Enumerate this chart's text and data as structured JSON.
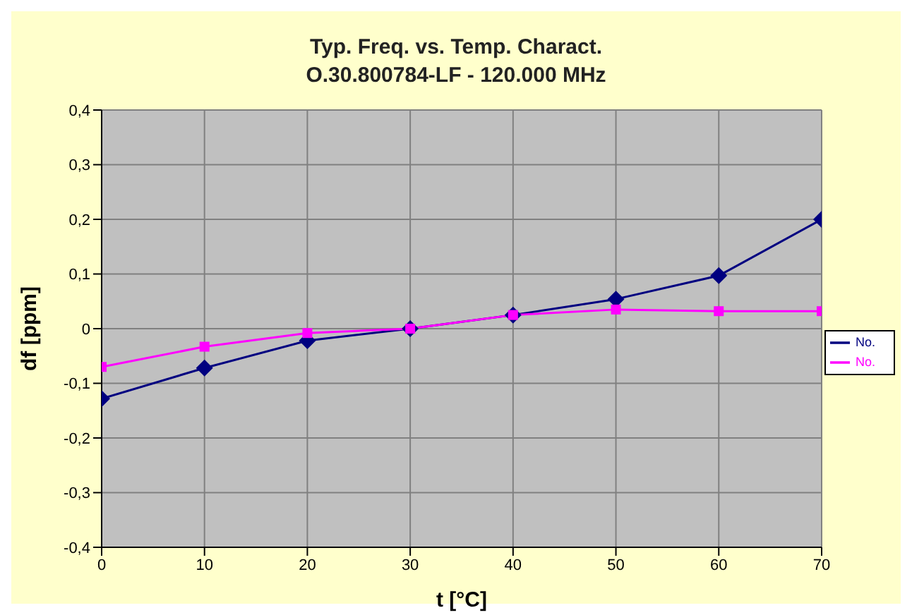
{
  "chart_data": {
    "type": "line",
    "title": "Typ. Freq. vs. Temp. Charact.",
    "subtitle": "O.30.800784-LF - 120.000 MHz",
    "xlabel": "t [°C]",
    "ylabel": "df [ppm]",
    "x": [
      0,
      10,
      20,
      30,
      40,
      50,
      60,
      70
    ],
    "series": [
      {
        "name": "No.",
        "color": "#000080",
        "marker": "diamond",
        "values": [
          -0.128,
          -0.072,
          -0.022,
          0,
          0.025,
          0.054,
          0.097,
          0.2
        ]
      },
      {
        "name": "No.",
        "color": "#ff00ff",
        "marker": "square",
        "values": [
          -0.07,
          -0.033,
          -0.008,
          0,
          0.025,
          0.035,
          0.032,
          0.032
        ]
      }
    ],
    "xlim": [
      0,
      70
    ],
    "xticks": [
      0,
      10,
      20,
      30,
      40,
      50,
      60,
      70
    ],
    "ylim": [
      -0.4,
      0.4
    ],
    "yticks": [
      {
        "value": -0.4,
        "label": "-0,4"
      },
      {
        "value": -0.3,
        "label": "-0,3"
      },
      {
        "value": -0.2,
        "label": "-0,2"
      },
      {
        "value": -0.1,
        "label": "-0,1"
      },
      {
        "value": 0,
        "label": "0"
      },
      {
        "value": 0.1,
        "label": "0,1"
      },
      {
        "value": 0.2,
        "label": "0,2"
      },
      {
        "value": 0.3,
        "label": "0,3"
      },
      {
        "value": 0.4,
        "label": "0,4"
      }
    ],
    "grid": true,
    "legend": "right",
    "line_style": "solid"
  }
}
